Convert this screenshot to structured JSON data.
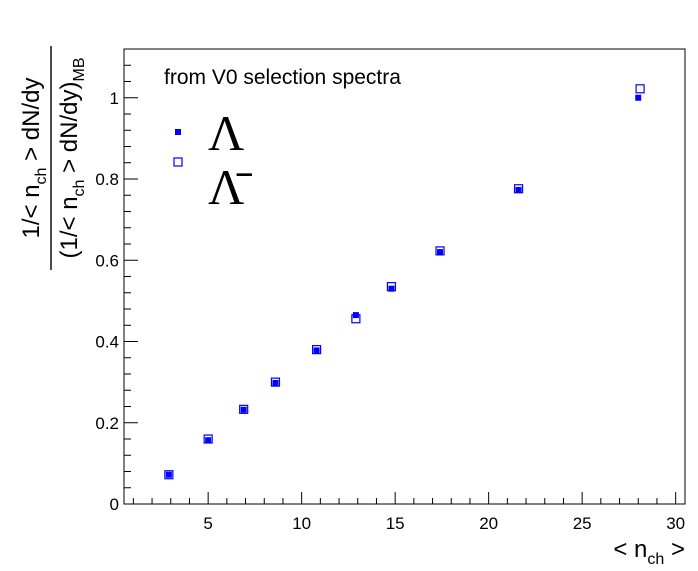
{
  "chart_data": {
    "type": "scatter",
    "annotation": "from V0 selection spectra",
    "xlabel": {
      "prefix": "< n",
      "sub": "ch",
      "suffix": " >"
    },
    "ylabel": {
      "numerator": {
        "prefix": "1/< n",
        "sub": "ch",
        "suffix": " > dN/dy"
      },
      "denominator": {
        "prefix": "(1/< n",
        "sub": "ch",
        "suffix": " > dN/dy)",
        "sub2": "MB"
      }
    },
    "xlim": [
      0.5,
      30.5
    ],
    "ylim": [
      0,
      1.12
    ],
    "xticks": [
      5,
      10,
      15,
      20,
      25,
      30
    ],
    "yticks": [
      0,
      0.2,
      0.4,
      0.6,
      0.8,
      1
    ],
    "ytick_labels": [
      "0",
      "0.2",
      "0.4",
      "0.6",
      "0.8",
      "1"
    ],
    "grid": false,
    "legend_position": "top-left",
    "series": [
      {
        "name": "Λ",
        "marker": "filled-square",
        "color": "#0000ff",
        "x": [
          2.9,
          5.0,
          6.9,
          8.6,
          10.8,
          12.9,
          14.8,
          17.4,
          21.6,
          28.0
        ],
        "y": [
          0.072,
          0.157,
          0.232,
          0.298,
          0.378,
          0.465,
          0.53,
          0.62,
          0.773,
          1.0
        ]
      },
      {
        "name": "Λ̄",
        "marker": "open-square",
        "color": "#0000ff",
        "x": [
          2.9,
          5.0,
          6.9,
          8.6,
          10.8,
          12.9,
          14.8,
          17.4,
          21.6,
          28.1
        ],
        "y": [
          0.072,
          0.16,
          0.233,
          0.3,
          0.38,
          0.456,
          0.535,
          0.623,
          0.776,
          1.022
        ]
      }
    ]
  }
}
